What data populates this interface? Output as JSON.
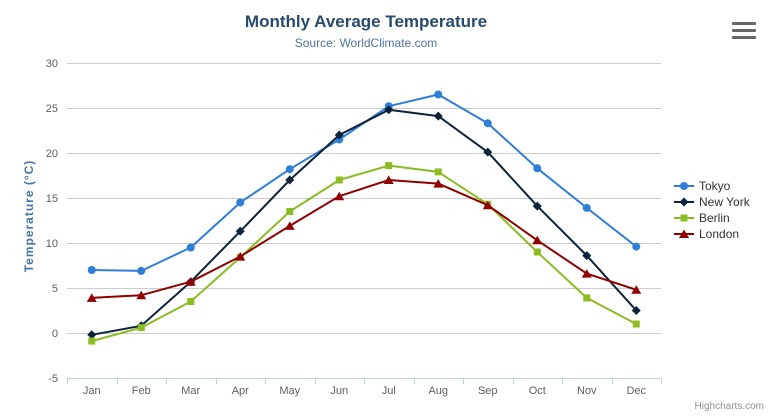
{
  "credit": "Highcharts.com",
  "export_menu": "context-menu",
  "chart_data": {
    "type": "line",
    "title": "Monthly Average Temperature",
    "subtitle": "Source: WorldClimate.com",
    "xlabel": "",
    "ylabel": "Temperature (°C)",
    "ylim": [
      -5,
      30
    ],
    "ytick_step": 5,
    "grid": true,
    "legend_position": "right",
    "categories": [
      "Jan",
      "Feb",
      "Mar",
      "Apr",
      "May",
      "Jun",
      "Jul",
      "Aug",
      "Sep",
      "Oct",
      "Nov",
      "Dec"
    ],
    "series": [
      {
        "name": "Tokyo",
        "color": "#2f7ed8",
        "marker": "circle",
        "values": [
          7.0,
          6.9,
          9.5,
          14.5,
          18.2,
          21.5,
          25.2,
          26.5,
          23.3,
          18.3,
          13.9,
          9.6
        ]
      },
      {
        "name": "New York",
        "color": "#0d233a",
        "marker": "diamond",
        "values": [
          -0.2,
          0.8,
          5.7,
          11.3,
          17.0,
          22.0,
          24.8,
          24.1,
          20.1,
          14.1,
          8.6,
          2.5
        ]
      },
      {
        "name": "Berlin",
        "color": "#8bbc21",
        "marker": "square",
        "values": [
          -0.9,
          0.6,
          3.5,
          8.4,
          13.5,
          17.0,
          18.6,
          17.9,
          14.3,
          9.0,
          3.9,
          1.0
        ]
      },
      {
        "name": "London",
        "color": "#910000",
        "marker": "triangle",
        "values": [
          3.9,
          4.2,
          5.7,
          8.5,
          11.9,
          15.2,
          17.0,
          16.6,
          14.2,
          10.3,
          6.6,
          4.8
        ]
      }
    ],
    "axis_colors": {
      "grid_line": "#cccccc",
      "axis_line": "#c0d0e0",
      "tick_label": "#606060"
    }
  }
}
